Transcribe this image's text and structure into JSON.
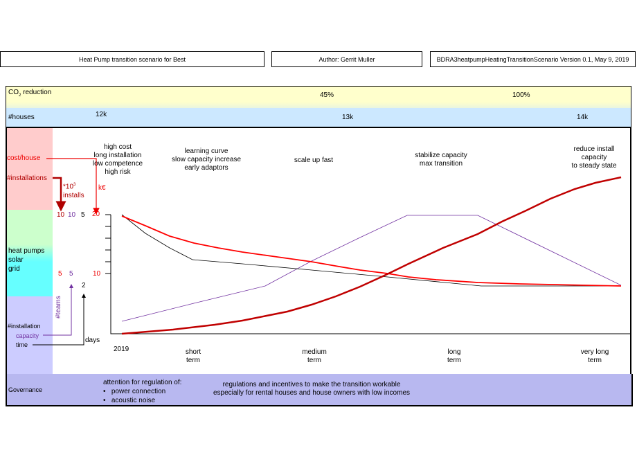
{
  "header": {
    "title": "Heat Pump transition scenario for Best",
    "author": "Author: Gerrit Muller",
    "version": "BDRA3heatpumpHeatingTransitionScenario Version 0.1, May 9, 2019"
  },
  "rows": {
    "co2_label": "CO",
    "co2_sub": "2",
    "co2_suffix": " reduction",
    "co2_values": [
      "45%",
      "100%"
    ],
    "houses_label": "#houses",
    "houses_values": [
      "12k",
      "13k",
      "14k"
    ]
  },
  "left": {
    "cost_house": "cost/house",
    "installations": "#installations",
    "tech": [
      "heat pumps",
      "solar",
      "grid"
    ],
    "installation": "#installation",
    "capacity": "capacity",
    "time": "time",
    "installs_unit_1": "*10",
    "installs_unit_sup": "3",
    "installs_unit_2": "installs",
    "keuro": "k€",
    "teams": "#teams",
    "days": "days"
  },
  "axis": {
    "top": [
      "10",
      "10",
      "5",
      "20"
    ],
    "mid": [
      "5",
      "5",
      "10"
    ],
    "days_val": "2"
  },
  "phases": [
    {
      "lines": [
        "high cost",
        "long installation",
        "low competence",
        "high risk"
      ]
    },
    {
      "lines": [
        "learning curve",
        "slow capacity increase",
        "early adaptors"
      ]
    },
    {
      "lines": [
        "scale up fast"
      ]
    },
    {
      "lines": [
        "stabilize capacity",
        "max transition"
      ]
    },
    {
      "lines": [
        "reduce install",
        "capacity",
        "to steady state"
      ]
    }
  ],
  "xaxis": {
    "start": "2019",
    "labels": [
      [
        "short",
        "term"
      ],
      [
        "medium",
        "term"
      ],
      [
        "long",
        "term"
      ],
      [
        "very long",
        "term"
      ]
    ]
  },
  "governance": {
    "label": "Governance",
    "attention": "attention for regulation of:",
    "bullets": [
      "power connection",
      "acoustic noise"
    ],
    "text": [
      "regulations and incentives to make the transition workable",
      "especially for rental houses and house owners with low incomes"
    ]
  },
  "colors": {
    "co2_row": "#ffffcc",
    "houses_row": "#cce8ff",
    "cost_band": "#ffcccc",
    "tech_band": "#ccffcc",
    "grid_band": "#66ffff",
    "install_band": "#ccccff",
    "governance": "#b8b8f0",
    "installations_curve": "#c00000",
    "cost_curve": "#ff0000",
    "time_curve": "#000000",
    "teams_curve": "#7030a0"
  }
}
